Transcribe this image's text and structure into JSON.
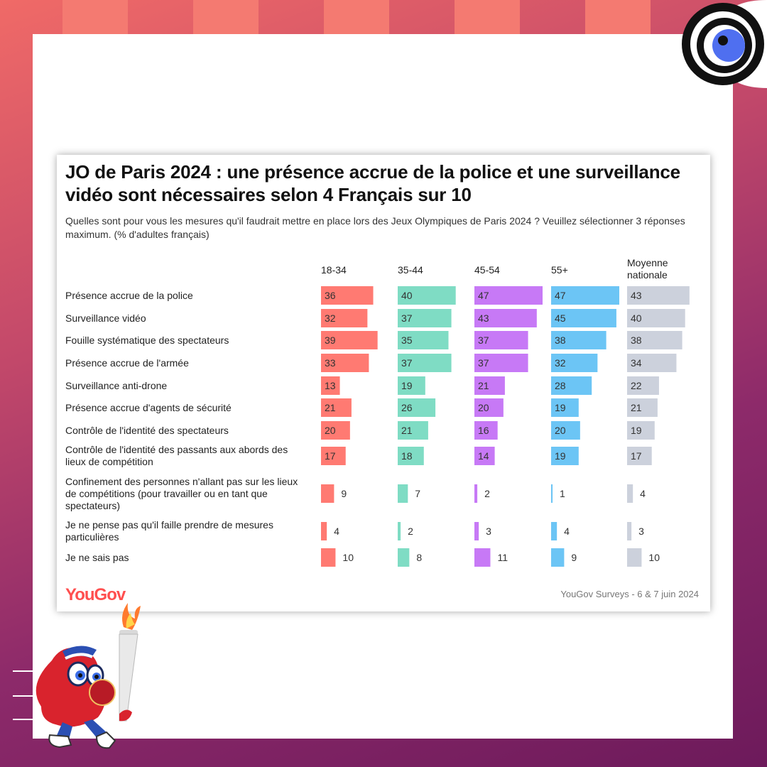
{
  "colors": {
    "background_top": "#f06a67",
    "background_bottom": "#6d1a5b",
    "stripe": "#f47a71",
    "title": "#111111",
    "brand_logo": "#ff4f4f"
  },
  "chart_data": {
    "type": "bar",
    "orientation": "horizontal",
    "layout": "small-multiples-by-age-group",
    "title": "JO de Paris 2024 : une présence accrue de la police et une surveillance vidéo sont nécessaires selon 4 Français sur 10",
    "subtitle": "Quelles sont pour vous les mesures qu'il faudrait mettre en place lors des Jeux Olympiques de Paris 2024 ? Veuillez sélectionner 3 réponses maximum. (% d'adultes français)",
    "categories": [
      "Présence accrue de la police",
      "Surveillance vidéo",
      "Fouille systématique des spectateurs",
      "Présence accrue de l'armée",
      "Surveillance anti-drone",
      "Présence accrue d'agents de sécurité",
      "Contrôle de l'identité des spectateurs",
      "Contrôle de l'identité des passants aux abords des lieux de compétition",
      "Confinement des personnes n'allant pas sur les lieux de compétitions (pour travailler ou en tant que spectateurs)",
      "Je ne pense pas qu'il faille prendre de mesures particulières",
      "Je ne sais pas"
    ],
    "series": [
      {
        "name": "18-34",
        "color": "#ff7a72",
        "values": [
          36,
          32,
          39,
          33,
          13,
          21,
          20,
          17,
          9,
          4,
          10
        ]
      },
      {
        "name": "35-44",
        "color": "#7fdcc4",
        "values": [
          40,
          37,
          35,
          37,
          19,
          26,
          21,
          18,
          7,
          2,
          8
        ]
      },
      {
        "name": "45-54",
        "color": "#c779f6",
        "values": [
          47,
          43,
          37,
          37,
          21,
          20,
          16,
          14,
          2,
          3,
          11
        ]
      },
      {
        "name": "55+",
        "color": "#6cc5f5",
        "values": [
          47,
          45,
          38,
          32,
          28,
          19,
          20,
          19,
          1,
          4,
          9
        ]
      },
      {
        "name": "Moyenne nationale",
        "color": "#ccd1dc",
        "values": [
          43,
          40,
          38,
          34,
          22,
          21,
          19,
          17,
          4,
          3,
          10
        ]
      }
    ],
    "xlim": [
      0,
      47
    ],
    "logo_text": "YouGov",
    "source": "YouGov Surveys - 6 & 7 juin 2024",
    "grid": false,
    "legend": "column headers"
  }
}
